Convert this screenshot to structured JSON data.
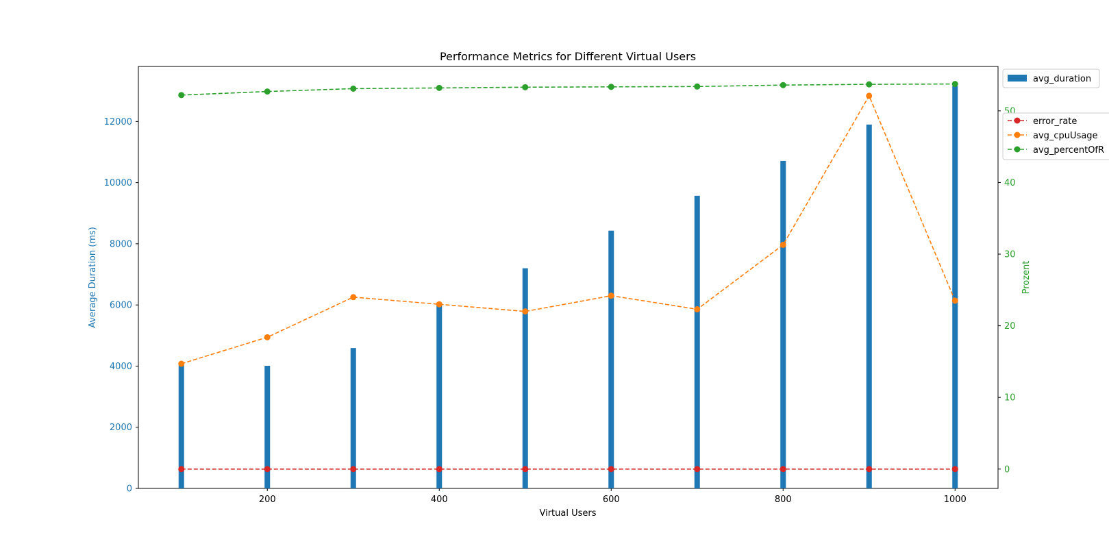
{
  "chart_data": {
    "type": "bar",
    "title": "Performance Metrics for Different Virtual Users",
    "xlabel": "Virtual Users",
    "ylabel_left": "Average Duration (ms)",
    "ylabel_right": "Prozent",
    "x": [
      100,
      200,
      300,
      400,
      500,
      600,
      700,
      800,
      900,
      1000
    ],
    "xlim": [
      50,
      1050
    ],
    "x_ticks": [
      "200",
      "400",
      "600",
      "800",
      "1000"
    ],
    "ylim_left": [
      0,
      13800
    ],
    "y_ticks_left": [
      "0",
      "2000",
      "4000",
      "6000",
      "8000",
      "10000",
      "12000"
    ],
    "ylim_right": [
      -2.7,
      56.2
    ],
    "y_ticks_right": [
      "0",
      "10",
      "20",
      "30",
      "40",
      "50"
    ],
    "grid": false,
    "legend_placement": "outside right",
    "series": [
      {
        "name": "avg_duration",
        "axis": "left",
        "kind": "bar",
        "color": "#1f77b4",
        "values": [
          4050,
          4010,
          4590,
          6050,
          7200,
          8430,
          9570,
          10710,
          11900,
          13150
        ]
      },
      {
        "name": "error_rate",
        "axis": "right",
        "kind": "line",
        "style": "dashed",
        "marker": "circle",
        "color": "#d62728",
        "values": [
          0,
          0,
          0,
          0,
          0,
          0,
          0,
          0,
          0,
          0
        ]
      },
      {
        "name": "avg_cpuUsage",
        "axis": "right",
        "kind": "line",
        "style": "dashed",
        "marker": "circle",
        "color": "#ff7f0e",
        "values": [
          14.7,
          18.4,
          24.0,
          23.0,
          22.0,
          24.2,
          22.3,
          31.3,
          52.1,
          23.5
        ]
      },
      {
        "name": "avg_percentOfR",
        "axis": "right",
        "kind": "line",
        "style": "dashed",
        "marker": "circle",
        "color": "#2ca02c",
        "values": [
          52.2,
          52.7,
          53.1,
          53.2,
          53.3,
          53.35,
          53.4,
          53.6,
          53.7,
          53.75
        ]
      }
    ]
  }
}
